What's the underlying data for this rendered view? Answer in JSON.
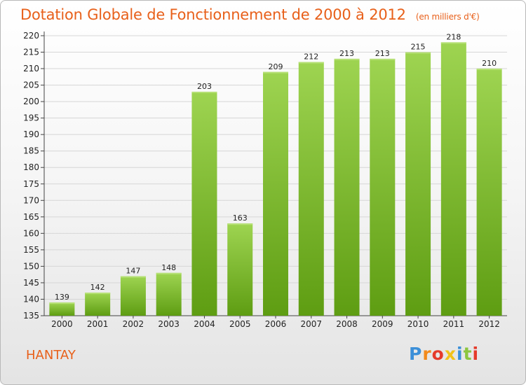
{
  "header": {
    "title": "Dotation Globale de Fonctionnement de 2000 à 2012",
    "subtitle": "(en milliers d'€)"
  },
  "footer": {
    "commune": "HANTAY",
    "brand": "Proxiti",
    "brand_colors": [
      "#3b8fd8",
      "#f28a1c",
      "#e53a2a",
      "#f2c21a",
      "#3b8fd8",
      "#8cc63f",
      "#e53a2a"
    ]
  },
  "colors": {
    "bar_light": "#9ed451",
    "bar_dark": "#5e9d12",
    "title": "#e8601a",
    "grid": "#d6d6d6"
  },
  "chart_data": {
    "type": "bar",
    "categories": [
      "2000",
      "2001",
      "2002",
      "2003",
      "2004",
      "2005",
      "2006",
      "2007",
      "2008",
      "2009",
      "2010",
      "2011",
      "2012"
    ],
    "values": [
      139,
      142,
      147,
      148,
      203,
      163,
      209,
      212,
      213,
      213,
      215,
      218,
      210
    ],
    "ylim": [
      135,
      220
    ],
    "yticks": [
      135,
      140,
      145,
      150,
      155,
      160,
      165,
      170,
      175,
      180,
      185,
      190,
      195,
      200,
      205,
      210,
      215,
      220
    ],
    "grid": true,
    "legend": "none"
  }
}
